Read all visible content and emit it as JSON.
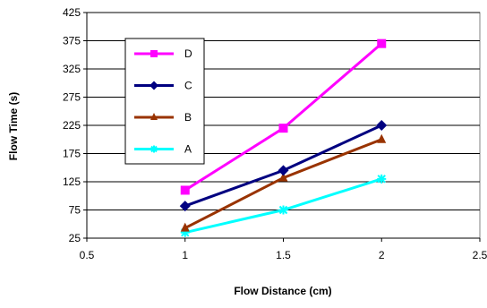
{
  "chart_data": {
    "type": "line",
    "title": "",
    "xlabel": "Flow Distance (cm)",
    "ylabel": "Flow Time (s)",
    "xlim": [
      0.5,
      2.5
    ],
    "ylim": [
      25,
      425
    ],
    "x_ticks": [
      "0.5",
      "1",
      "1.5",
      "2",
      "2.5"
    ],
    "y_ticks": [
      "25",
      "75",
      "125",
      "175",
      "225",
      "275",
      "325",
      "375",
      "425"
    ],
    "grid": "horizontal",
    "legend_position": "upper-left inside plot",
    "legend_order": [
      "D",
      "C",
      "B",
      "A"
    ],
    "x": [
      1,
      1.5,
      2
    ],
    "series": [
      {
        "name": "A",
        "values": [
          35,
          75,
          130
        ],
        "color": "#00FFFF",
        "marker": "asterisk"
      },
      {
        "name": "B",
        "values": [
          43,
          132,
          200
        ],
        "color": "#993300",
        "marker": "triangle"
      },
      {
        "name": "C",
        "values": [
          82,
          145,
          225
        ],
        "color": "#000080",
        "marker": "diamond"
      },
      {
        "name": "D",
        "values": [
          110,
          220,
          370
        ],
        "color": "#FF00FF",
        "marker": "square"
      }
    ]
  }
}
